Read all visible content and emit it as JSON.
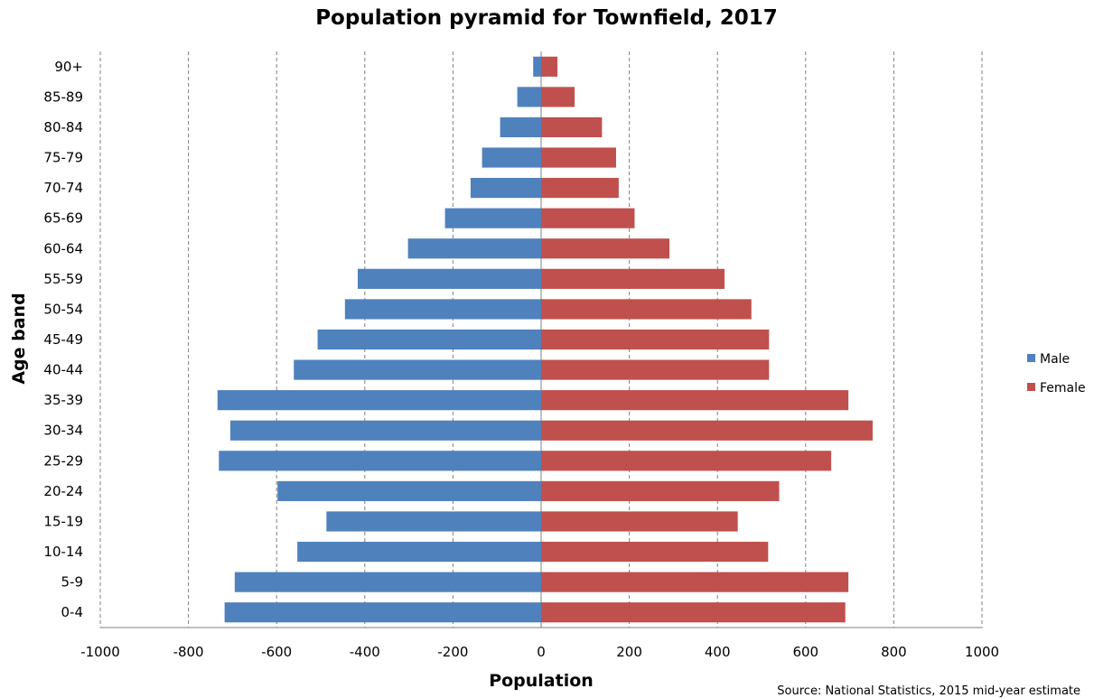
{
  "chart_data": {
    "type": "bar",
    "orientation": "horizontal",
    "title": "Population pyramid for Townfield, 2017",
    "xlabel": "Population",
    "ylabel": "Age band",
    "source": "Source: National Statistics, 2015 mid-year estimate",
    "xlim": [
      -1000,
      1000
    ],
    "xticks": [
      -1000,
      -800,
      -600,
      -400,
      -200,
      0,
      200,
      400,
      600,
      800,
      1000
    ],
    "grid": "vertical dashed",
    "legend_position": "right",
    "categories": [
      "0-4",
      "5-9",
      "10-14",
      "15-19",
      "20-24",
      "25-29",
      "30-34",
      "35-39",
      "40-44",
      "45-49",
      "50-54",
      "55-59",
      "60-64",
      "65-69",
      "70-74",
      "75-79",
      "80-84",
      "85-89",
      "90+"
    ],
    "series": [
      {
        "name": "Male",
        "color": "#4f81bd",
        "values": [
          -718,
          -695,
          -553,
          -487,
          -598,
          -731,
          -705,
          -734,
          -561,
          -507,
          -445,
          -416,
          -302,
          -218,
          -160,
          -134,
          -93,
          -54,
          -18
        ]
      },
      {
        "name": "Female",
        "color": "#c0504d",
        "values": [
          690,
          697,
          515,
          446,
          540,
          658,
          752,
          697,
          517,
          517,
          477,
          416,
          291,
          212,
          176,
          170,
          138,
          76,
          37
        ]
      }
    ]
  }
}
